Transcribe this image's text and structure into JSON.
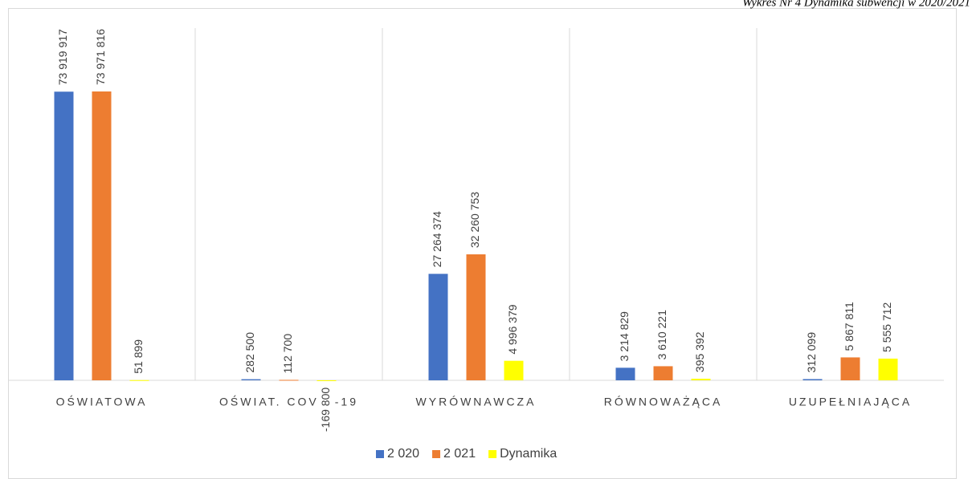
{
  "chart_data": {
    "type": "bar",
    "title": "Wykres Nr 4 Dynamika subwencji w 2020/2021",
    "categories": [
      "OŚWIATOWA",
      "OŚWIAT. COVID-19",
      "WYRÓWNAWCZA",
      "RÓWNOWAŻĄCA",
      "UZUPEŁNIAJĄCA"
    ],
    "series": [
      {
        "name": "2 020",
        "color": "#4472c4",
        "values": [
          73919917,
          282500,
          27264374,
          3214829,
          312099
        ],
        "value_labels": [
          "73 919 917",
          "282 500",
          "27 264 374",
          "3 214 829",
          "312 099"
        ]
      },
      {
        "name": "2 021",
        "color": "#ed7d31",
        "values": [
          73971816,
          112700,
          32260753,
          3610221,
          5867811
        ],
        "value_labels": [
          "73 971 816",
          "112 700",
          "32 260 753",
          "3 610 221",
          "5 867 811"
        ]
      },
      {
        "name": "Dynamika",
        "color": "#ffff00",
        "values": [
          51899,
          -169800,
          4996379,
          395392,
          5555712
        ],
        "value_labels": [
          "51 899",
          "-169 800",
          "4 996 379",
          "395 392",
          "5 555 712"
        ]
      }
    ],
    "legend": "bottom"
  }
}
